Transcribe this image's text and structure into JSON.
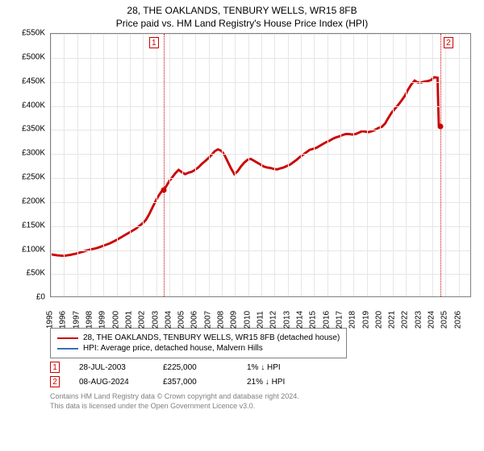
{
  "title_line1": "28, THE OAKLANDS, TENBURY WELLS, WR15 8FB",
  "title_line2": "Price paid vs. HM Land Registry's House Price Index (HPI)",
  "chart": {
    "type": "line",
    "background_color": "#ffffff",
    "grid_color": "#e6e6e6",
    "border_color": "#808080",
    "x": {
      "min": 1995,
      "max": 2027,
      "ticks": [
        1995,
        1996,
        1997,
        1998,
        1999,
        2000,
        2001,
        2002,
        2003,
        2004,
        2005,
        2006,
        2007,
        2008,
        2009,
        2010,
        2011,
        2012,
        2013,
        2014,
        2015,
        2016,
        2017,
        2018,
        2019,
        2020,
        2021,
        2022,
        2023,
        2024,
        2025,
        2026
      ]
    },
    "y": {
      "min": 0,
      "max": 550000,
      "ticks": [
        0,
        50000,
        100000,
        150000,
        200000,
        250000,
        300000,
        350000,
        400000,
        450000,
        500000,
        550000
      ],
      "prefix": "£",
      "suffix": "K",
      "divisor": 1000
    },
    "series": [
      {
        "name": "28, THE OAKLANDS, TENBURY WELLS, WR15 8FB (detached house)",
        "color": "#cc0000",
        "line_width": 1.5,
        "points": [
          [
            1995.0,
            88000
          ],
          [
            1995.5,
            86000
          ],
          [
            1996.0,
            85000
          ],
          [
            1996.5,
            87000
          ],
          [
            1997.0,
            90000
          ],
          [
            1997.5,
            94000
          ],
          [
            1998.0,
            98000
          ],
          [
            1998.5,
            101000
          ],
          [
            1999.0,
            106000
          ],
          [
            1999.5,
            111000
          ],
          [
            2000.0,
            118000
          ],
          [
            2000.5,
            126000
          ],
          [
            2001.0,
            134000
          ],
          [
            2001.5,
            142000
          ],
          [
            2002.0,
            153000
          ],
          [
            2002.25,
            160000
          ],
          [
            2002.5,
            172000
          ],
          [
            2002.75,
            186000
          ],
          [
            2003.0,
            200000
          ],
          [
            2003.25,
            212000
          ],
          [
            2003.5,
            222000
          ],
          [
            2003.57,
            225000
          ],
          [
            2003.75,
            228000
          ],
          [
            2004.0,
            240000
          ],
          [
            2004.25,
            249000
          ],
          [
            2004.5,
            258000
          ],
          [
            2004.75,
            265000
          ],
          [
            2005.0,
            260000
          ],
          [
            2005.25,
            256000
          ],
          [
            2005.5,
            259000
          ],
          [
            2005.75,
            261000
          ],
          [
            2006.0,
            265000
          ],
          [
            2006.25,
            270000
          ],
          [
            2006.5,
            277000
          ],
          [
            2006.75,
            283000
          ],
          [
            2007.0,
            289000
          ],
          [
            2007.25,
            296000
          ],
          [
            2007.5,
            304000
          ],
          [
            2007.75,
            308000
          ],
          [
            2008.0,
            305000
          ],
          [
            2008.25,
            296000
          ],
          [
            2008.5,
            282000
          ],
          [
            2008.75,
            268000
          ],
          [
            2009.0,
            256000
          ],
          [
            2009.25,
            262000
          ],
          [
            2009.5,
            272000
          ],
          [
            2009.75,
            280000
          ],
          [
            2010.0,
            286000
          ],
          [
            2010.25,
            288000
          ],
          [
            2010.5,
            284000
          ],
          [
            2010.75,
            280000
          ],
          [
            2011.0,
            276000
          ],
          [
            2011.25,
            272000
          ],
          [
            2011.5,
            270000
          ],
          [
            2011.75,
            269000
          ],
          [
            2012.0,
            267000
          ],
          [
            2012.25,
            266000
          ],
          [
            2012.5,
            268000
          ],
          [
            2012.75,
            270000
          ],
          [
            2013.0,
            273000
          ],
          [
            2013.25,
            276000
          ],
          [
            2013.5,
            281000
          ],
          [
            2013.75,
            286000
          ],
          [
            2014.0,
            292000
          ],
          [
            2014.25,
            297000
          ],
          [
            2014.5,
            302000
          ],
          [
            2014.75,
            307000
          ],
          [
            2015.0,
            309000
          ],
          [
            2015.25,
            311000
          ],
          [
            2015.5,
            315000
          ],
          [
            2015.75,
            319000
          ],
          [
            2016.0,
            323000
          ],
          [
            2016.25,
            326000
          ],
          [
            2016.5,
            330000
          ],
          [
            2016.75,
            333000
          ],
          [
            2017.0,
            335000
          ],
          [
            2017.25,
            338000
          ],
          [
            2017.5,
            340000
          ],
          [
            2017.75,
            340000
          ],
          [
            2018.0,
            339000
          ],
          [
            2018.25,
            340000
          ],
          [
            2018.5,
            343000
          ],
          [
            2018.75,
            346000
          ],
          [
            2019.0,
            345000
          ],
          [
            2019.25,
            344000
          ],
          [
            2019.5,
            346000
          ],
          [
            2019.75,
            349000
          ],
          [
            2020.0,
            353000
          ],
          [
            2020.25,
            355000
          ],
          [
            2020.5,
            362000
          ],
          [
            2020.75,
            374000
          ],
          [
            2021.0,
            385000
          ],
          [
            2021.25,
            393000
          ],
          [
            2021.5,
            401000
          ],
          [
            2021.75,
            410000
          ],
          [
            2022.0,
            420000
          ],
          [
            2022.25,
            433000
          ],
          [
            2022.5,
            444000
          ],
          [
            2022.75,
            452000
          ],
          [
            2023.0,
            448000
          ],
          [
            2023.25,
            448000
          ],
          [
            2023.5,
            450000
          ],
          [
            2023.75,
            451000
          ],
          [
            2024.0,
            453000
          ],
          [
            2024.25,
            459000
          ],
          [
            2024.5,
            458000
          ],
          [
            2024.6,
            357000
          ]
        ]
      },
      {
        "name": "HPI: Average price, detached house, Malvern Hills",
        "color": "#3a6fb7",
        "line_width": 1,
        "points": []
      }
    ],
    "sale_markers": [
      {
        "x": 2003.57,
        "y": 225000,
        "color": "#cc0000"
      },
      {
        "x": 2024.6,
        "y": 357000,
        "color": "#cc0000"
      }
    ],
    "events": [
      {
        "num": "1",
        "x": 2003.57,
        "color": "#cc0000",
        "marker_side": "left"
      },
      {
        "num": "2",
        "x": 2024.6,
        "color": "#cc0000",
        "marker_side": "right"
      }
    ]
  },
  "legend": [
    {
      "color": "#cc0000",
      "label": "28, THE OAKLANDS, TENBURY WELLS, WR15 8FB (detached house)"
    },
    {
      "color": "#3a6fb7",
      "label": "HPI: Average price, detached house, Malvern Hills"
    }
  ],
  "events_table": [
    {
      "num": "1",
      "color": "#cc0000",
      "date": "28-JUL-2003",
      "price": "£225,000",
      "diff": "1% ↓ HPI"
    },
    {
      "num": "2",
      "color": "#cc0000",
      "date": "08-AUG-2024",
      "price": "£357,000",
      "diff": "21% ↓ HPI"
    }
  ],
  "footer_line1": "Contains HM Land Registry data © Crown copyright and database right 2024.",
  "footer_line2": "This data is licensed under the Open Government Licence v3.0."
}
